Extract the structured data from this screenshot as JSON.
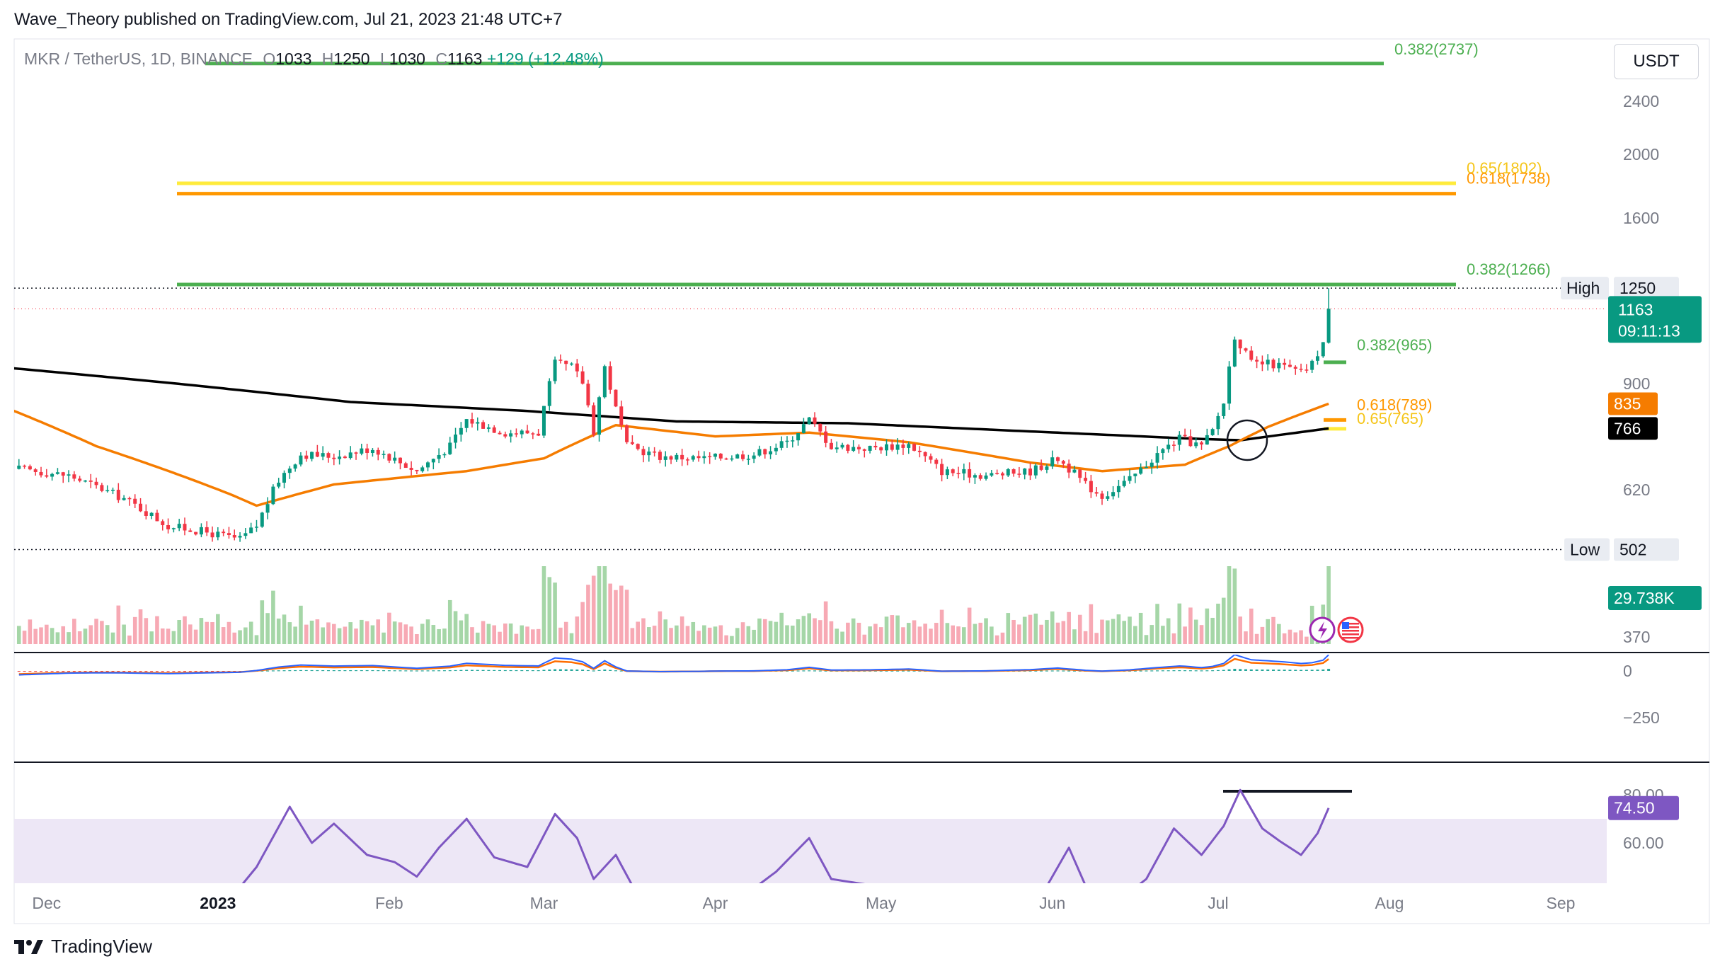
{
  "publisher_line": "Wave_Theory published on TradingView.com, Jul 21, 2023 21:48 UTC+7",
  "legend": {
    "symbol": "MKR / TetherUS, 1D, BINANCE",
    "open_label": "O",
    "open": "1033",
    "high_label": "H",
    "high": "1250",
    "low_label": "L",
    "low": "1030",
    "close_label": "C",
    "close": "1163",
    "change": "+129 (+12.48%)"
  },
  "currency_button": "USDT",
  "brand": "TradingView",
  "colors": {
    "up": "#089981",
    "down": "#f23645",
    "fib_green": "#4caf50",
    "fib_gold": "#ffeb3b",
    "fib_orange": "#ff9800",
    "ema50": "#f57c00",
    "ema200": "#000000",
    "macd": "#2962ff",
    "signal": "#ff6d00",
    "rsi": "#7e57c2",
    "rsi_band": "#ede7f6",
    "vol_up": "#a5d6a7",
    "vol_down": "#f7a9b4"
  },
  "chart_data": [
    {
      "type": "candlestick",
      "title": "MKR / TetherUS, 1D, BINANCE",
      "ylim": [
        360,
        2900
      ],
      "y_scale": "log",
      "price_ticks": [
        "2400",
        "2000",
        "1600",
        "900",
        "620",
        "370"
      ],
      "x_ticks": [
        "Dec",
        "2023",
        "Feb",
        "Mar",
        "Apr",
        "May",
        "Jun",
        "Jul",
        "Aug",
        "Sep"
      ],
      "markers": [
        {
          "label": "High",
          "value": "1250"
        },
        {
          "label": "Low",
          "value": "502"
        }
      ],
      "last_price": "1163",
      "countdown": "09:11:13",
      "ema50_value": "835",
      "ema200_value": "766",
      "volume_label": "29.738K",
      "fib_levels": [
        {
          "ratio": "0.382",
          "value": "2737",
          "text": "0.382(2737)",
          "color": "#4caf50"
        },
        {
          "ratio": "0.65",
          "value": "1802",
          "text": "0.65(1802)",
          "color": "#ffeb3b"
        },
        {
          "ratio": "0.618",
          "value": "1738",
          "text": "0.618(1738)",
          "color": "#ff9800"
        },
        {
          "ratio": "0.382",
          "value": "1266",
          "text": "0.382(1266)",
          "color": "#4caf50"
        },
        {
          "ratio": "0.382",
          "value": "965",
          "text": "0.382(965)",
          "color": "#4caf50"
        },
        {
          "ratio": "0.618",
          "value": "789",
          "text": "0.618(789)",
          "color": "#ff9800"
        },
        {
          "ratio": "0.65",
          "value": "765",
          "text": "0.65(765)",
          "color": "#ffeb3b"
        }
      ],
      "price_anchors": [
        {
          "date": "2022-11-26",
          "close": 665
        },
        {
          "date": "2022-12-05",
          "close": 650
        },
        {
          "date": "2022-12-15",
          "close": 600
        },
        {
          "date": "2022-12-23",
          "close": 545
        },
        {
          "date": "2022-12-29",
          "close": 535
        },
        {
          "date": "2023-01-05",
          "close": 520
        },
        {
          "date": "2023-01-08",
          "close": 545
        },
        {
          "date": "2023-01-12",
          "close": 640
        },
        {
          "date": "2023-01-16",
          "close": 700
        },
        {
          "date": "2023-01-22",
          "close": 695
        },
        {
          "date": "2023-01-29",
          "close": 715
        },
        {
          "date": "2023-02-06",
          "close": 660
        },
        {
          "date": "2023-02-12",
          "close": 720
        },
        {
          "date": "2023-02-15",
          "close": 790
        },
        {
          "date": "2023-02-22",
          "close": 755
        },
        {
          "date": "2023-02-28",
          "close": 755
        },
        {
          "date": "2023-03-03",
          "close": 960
        },
        {
          "date": "2023-03-06",
          "close": 950
        },
        {
          "date": "2023-03-08",
          "close": 900
        },
        {
          "date": "2023-03-10",
          "close": 760
        },
        {
          "date": "2023-03-12",
          "close": 950
        },
        {
          "date": "2023-03-14",
          "close": 820
        },
        {
          "date": "2023-03-16",
          "close": 720
        },
        {
          "date": "2023-03-22",
          "close": 695
        },
        {
          "date": "2023-03-30",
          "close": 690
        },
        {
          "date": "2023-04-08",
          "close": 700
        },
        {
          "date": "2023-04-14",
          "close": 730
        },
        {
          "date": "2023-04-18",
          "close": 790
        },
        {
          "date": "2023-04-22",
          "close": 720
        },
        {
          "date": "2023-04-29",
          "close": 715
        },
        {
          "date": "2023-05-06",
          "close": 725
        },
        {
          "date": "2023-05-12",
          "close": 660
        },
        {
          "date": "2023-05-20",
          "close": 650
        },
        {
          "date": "2023-05-28",
          "close": 660
        },
        {
          "date": "2023-06-02",
          "close": 690
        },
        {
          "date": "2023-06-07",
          "close": 630
        },
        {
          "date": "2023-06-10",
          "close": 605
        },
        {
          "date": "2023-06-15",
          "close": 640
        },
        {
          "date": "2023-06-20",
          "close": 700
        },
        {
          "date": "2023-06-24",
          "close": 740
        },
        {
          "date": "2023-06-28",
          "close": 720
        },
        {
          "date": "2023-06-30",
          "close": 760
        },
        {
          "date": "2023-07-02",
          "close": 840
        },
        {
          "date": "2023-07-04",
          "close": 1060
        },
        {
          "date": "2023-07-07",
          "close": 960
        },
        {
          "date": "2023-07-10",
          "close": 960
        },
        {
          "date": "2023-07-13",
          "close": 950
        },
        {
          "date": "2023-07-16",
          "close": 930
        },
        {
          "date": "2023-07-18",
          "close": 960
        },
        {
          "date": "2023-07-20",
          "close": 1034
        },
        {
          "date": "2023-07-21",
          "close": 1163
        }
      ],
      "ema50_anchors": [
        {
          "date": "2022-11-25",
          "value": 815
        },
        {
          "date": "2022-12-10",
          "value": 720
        },
        {
          "date": "2023-01-03",
          "value": 610
        },
        {
          "date": "2023-01-08",
          "value": 585
        },
        {
          "date": "2023-01-22",
          "value": 630
        },
        {
          "date": "2023-02-15",
          "value": 660
        },
        {
          "date": "2023-03-01",
          "value": 690
        },
        {
          "date": "2023-03-14",
          "value": 775
        },
        {
          "date": "2023-04-01",
          "value": 745
        },
        {
          "date": "2023-04-18",
          "value": 755
        },
        {
          "date": "2023-05-06",
          "value": 730
        },
        {
          "date": "2023-05-28",
          "value": 680
        },
        {
          "date": "2023-06-10",
          "value": 660
        },
        {
          "date": "2023-06-25",
          "value": 675
        },
        {
          "date": "2023-07-03",
          "value": 720
        },
        {
          "date": "2023-07-10",
          "value": 770
        },
        {
          "date": "2023-07-21",
          "value": 835
        }
      ],
      "ema200_anchors": [
        {
          "date": "2022-11-25",
          "value": 945
        },
        {
          "date": "2022-12-25",
          "value": 895
        },
        {
          "date": "2023-01-25",
          "value": 840
        },
        {
          "date": "2023-02-25",
          "value": 815
        },
        {
          "date": "2023-03-25",
          "value": 785
        },
        {
          "date": "2023-04-25",
          "value": 780
        },
        {
          "date": "2023-05-25",
          "value": 760
        },
        {
          "date": "2023-06-25",
          "value": 740
        },
        {
          "date": "2023-07-05",
          "value": 735
        },
        {
          "date": "2023-07-21",
          "value": 766
        }
      ]
    },
    {
      "type": "area",
      "title": "Volume",
      "last_value": "29.738K"
    },
    {
      "type": "line",
      "title": "MACD",
      "ticks": [
        "0",
        "−250"
      ]
    },
    {
      "type": "line",
      "title": "RSI",
      "ticks": [
        "80.00",
        "60.00"
      ],
      "last_value": "74.50",
      "rsi_anchors": [
        {
          "date": "2023-01-03",
          "value": 36
        },
        {
          "date": "2023-01-08",
          "value": 50
        },
        {
          "date": "2023-01-14",
          "value": 75
        },
        {
          "date": "2023-01-18",
          "value": 60
        },
        {
          "date": "2023-01-22",
          "value": 68
        },
        {
          "date": "2023-01-28",
          "value": 55
        },
        {
          "date": "2023-02-02",
          "value": 52
        },
        {
          "date": "2023-02-06",
          "value": 46
        },
        {
          "date": "2023-02-10",
          "value": 58
        },
        {
          "date": "2023-02-15",
          "value": 70
        },
        {
          "date": "2023-02-20",
          "value": 54
        },
        {
          "date": "2023-02-26",
          "value": 50
        },
        {
          "date": "2023-03-03",
          "value": 72
        },
        {
          "date": "2023-03-07",
          "value": 62
        },
        {
          "date": "2023-03-10",
          "value": 45
        },
        {
          "date": "2023-03-14",
          "value": 55
        },
        {
          "date": "2023-03-18",
          "value": 38
        },
        {
          "date": "2023-03-26",
          "value": 35
        },
        {
          "date": "2023-04-05",
          "value": 36
        },
        {
          "date": "2023-04-12",
          "value": 48
        },
        {
          "date": "2023-04-18",
          "value": 62
        },
        {
          "date": "2023-04-22",
          "value": 45
        },
        {
          "date": "2023-05-03",
          "value": 41
        },
        {
          "date": "2023-05-10",
          "value": 39
        },
        {
          "date": "2023-05-20",
          "value": 35
        },
        {
          "date": "2023-05-30",
          "value": 38
        },
        {
          "date": "2023-06-04",
          "value": 58
        },
        {
          "date": "2023-06-08",
          "value": 37
        },
        {
          "date": "2023-06-12",
          "value": 34
        },
        {
          "date": "2023-06-18",
          "value": 45
        },
        {
          "date": "2023-06-23",
          "value": 66
        },
        {
          "date": "2023-06-28",
          "value": 55
        },
        {
          "date": "2023-07-02",
          "value": 67
        },
        {
          "date": "2023-07-05",
          "value": 82
        },
        {
          "date": "2023-07-09",
          "value": 66
        },
        {
          "date": "2023-07-12",
          "value": 61
        },
        {
          "date": "2023-07-16",
          "value": 55
        },
        {
          "date": "2023-07-19",
          "value": 64
        },
        {
          "date": "2023-07-21",
          "value": 74.5
        }
      ]
    }
  ]
}
